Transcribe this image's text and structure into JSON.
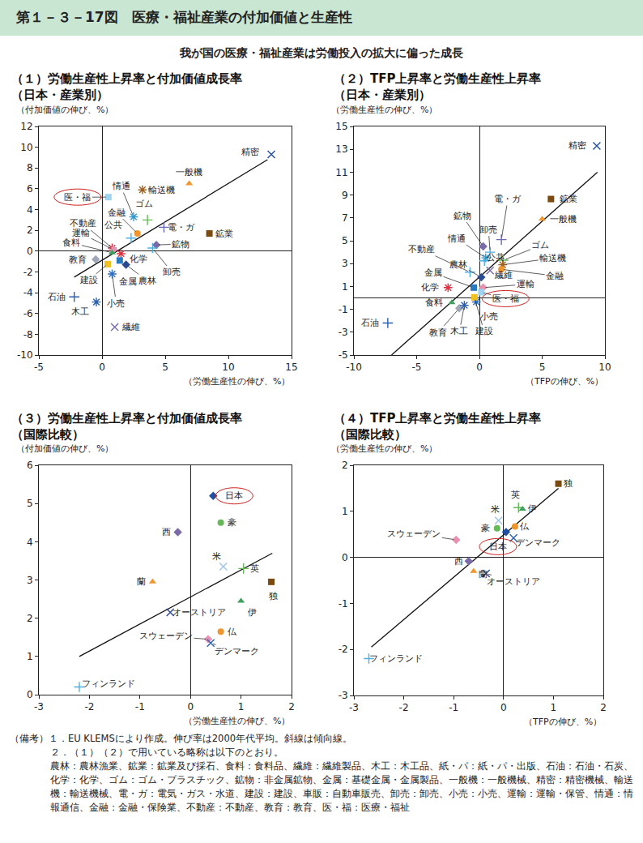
{
  "title": "第１－３－17図　医療・福祉産業の付加価値と生産性",
  "subtitle": "我が国の医療・福祉産業は労働投入の拡大に偏った成長",
  "notes": [
    "（備考）１．EU KLEMSにより作成。伸び率は2000年代平均。斜線は傾向線。",
    "２．（１）（２）で用いている略称は以下のとおり。",
    "農林：農林漁業、鉱業：鉱業及び採石、食料：食料品、繊維：繊維製品、木工：木工品、紙・パ：紙・パ・出版、石油：石油・石炭、化学：化学、ゴム：ゴム・プラスチック、鉱物：非金属鉱物、金属：基礎金属・金属製品、一般機：一般機械、精密：精密機械、輸送機：輸送機械、電・ガ：電気・ガス・水道、建設：建設、車販：自動車販売、卸売：卸売、小売：小売、運輸：運輸・保管、情通：情報通信、金融：金融・保険業、不動産：不動産、教育：教育、医・福：医療・福祉"
  ],
  "chart_data": [
    {
      "type": "scatter",
      "title": [
        "（１）労働生産性上昇率と付加価値成長率",
        "（日本・産業別）"
      ],
      "x_label": "（労働生産性の伸び、%）",
      "y_label": "（付加価値の伸び、%）",
      "xlim": [
        -5,
        15
      ],
      "xticks": [
        -5,
        0,
        5,
        10,
        15
      ],
      "ylim": [
        -10,
        12
      ],
      "yticks": [
        -10,
        -8,
        -6,
        -4,
        -2,
        0,
        2,
        4,
        6,
        8,
        10,
        12
      ],
      "trend_line": {
        "x": [
          -2.2,
          13.1
        ],
        "values": [
          -2.5,
          8.8
        ]
      },
      "series": [
        {
          "name": "精密",
          "color": "#1f4fa0",
          "marker": "x",
          "x": [
            13.4
          ],
          "values": [
            9.3
          ]
        },
        {
          "name": "一般機",
          "color": "#f0962e",
          "marker": "triangle",
          "x": [
            6.9
          ],
          "values": [
            6.5
          ]
        },
        {
          "name": "輸送機",
          "color": "#a0601e",
          "marker": "asterisk",
          "x": [
            3.2
          ],
          "values": [
            5.9
          ]
        },
        {
          "name": "医・福",
          "color": "#9fd4f0",
          "marker": "square",
          "x": [
            0.5
          ],
          "values": [
            5.2
          ],
          "highlight": true
        },
        {
          "name": "情通",
          "color": "#3399cc",
          "marker": "asterisk",
          "x": [
            2.5
          ],
          "values": [
            3.3
          ]
        },
        {
          "name": "ゴム",
          "color": "#66b85a",
          "marker": "plus",
          "x": [
            3.6
          ],
          "values": [
            3.0
          ]
        },
        {
          "name": "金融",
          "color": "#f0962e",
          "marker": "circle",
          "x": [
            2.8
          ],
          "values": [
            1.7
          ]
        },
        {
          "name": "公共",
          "color": "#4db0e0",
          "marker": "plus",
          "x": [
            2.3
          ],
          "values": [
            1.25
          ]
        },
        {
          "name": "電・ガ",
          "color": "#6a6ab8",
          "marker": "plus",
          "x": [
            4.9
          ],
          "values": [
            2.3
          ]
        },
        {
          "name": "鉱業",
          "color": "#7a4a10",
          "marker": "square",
          "x": [
            8.5
          ],
          "values": [
            1.7
          ]
        },
        {
          "name": "鉱物",
          "color": "#7a6aa8",
          "marker": "diamond",
          "x": [
            4.3
          ],
          "values": [
            0.6
          ]
        },
        {
          "name": "卸売",
          "color": "#4db0e0",
          "marker": "plus",
          "x": [
            4.0
          ],
          "values": [
            0.3
          ]
        },
        {
          "name": "不動産",
          "color": "#e03040",
          "marker": "asterisk",
          "x": [
            0.8
          ],
          "values": [
            0.3
          ]
        },
        {
          "name": "運輸",
          "color": "#e890b0",
          "marker": "diamond",
          "x": [
            0.9
          ],
          "values": [
            0.15
          ]
        },
        {
          "name": "食料",
          "color": "#40a060",
          "marker": "triangle",
          "x": [
            0.8
          ],
          "values": [
            -0.15
          ]
        },
        {
          "name": "教育",
          "color": "#a0a8b8",
          "marker": "diamond",
          "x": [
            -0.5
          ],
          "values": [
            -0.8
          ]
        },
        {
          "name": "化学",
          "color": "#e03040",
          "marker": "asterisk",
          "x": [
            1.5
          ],
          "values": [
            -0.25
          ]
        },
        {
          "name": "農林",
          "color": "#2a4a90",
          "marker": "diamond",
          "x": [
            1.9
          ],
          "values": [
            -1.3
          ]
        },
        {
          "name": "金属",
          "color": "#2a7ac0",
          "marker": "square",
          "x": [
            1.4
          ],
          "values": [
            -0.9
          ]
        },
        {
          "name": "建設",
          "color": "#f0c020",
          "marker": "square",
          "x": [
            0.45
          ],
          "values": [
            -1.25
          ]
        },
        {
          "name": "小売",
          "color": "#3070c0",
          "marker": "asterisk",
          "x": [
            0.8
          ],
          "values": [
            -2.2
          ]
        },
        {
          "name": "石油",
          "color": "#2a60b0",
          "marker": "plus",
          "x": [
            -2.2
          ],
          "values": [
            -4.4
          ]
        },
        {
          "name": "木工",
          "color": "#2a60b0",
          "marker": "asterisk",
          "x": [
            -0.45
          ],
          "values": [
            -4.9
          ]
        },
        {
          "name": "繊維",
          "color": "#7a6aa8",
          "marker": "x",
          "x": [
            1.0
          ],
          "values": [
            -7.3
          ]
        }
      ]
    },
    {
      "type": "scatter",
      "title": [
        "（２）TFP上昇率と労働生産性上昇率",
        "（日本・産業別）"
      ],
      "x_label": "（TFPの伸び、%）",
      "y_label": "（労働生産性の伸び、%）",
      "xlim": [
        -10,
        10
      ],
      "xticks": [
        -10,
        -5,
        0,
        5,
        10
      ],
      "ylim": [
        -5,
        15
      ],
      "yticks": [
        -5,
        -3,
        -1,
        1,
        3,
        5,
        7,
        9,
        11,
        13,
        15
      ],
      "trend_line": {
        "x": [
          -7.0,
          9.4
        ],
        "values": [
          -5.0,
          11.0
        ]
      },
      "series": [
        {
          "name": "精密",
          "color": "#1f4fa0",
          "marker": "x",
          "x": [
            9.35
          ],
          "values": [
            13.3
          ]
        },
        {
          "name": "鉱業",
          "color": "#7a4a10",
          "marker": "square",
          "x": [
            5.7
          ],
          "values": [
            8.65
          ]
        },
        {
          "name": "一般機",
          "color": "#f0962e",
          "marker": "triangle",
          "x": [
            5.0
          ],
          "values": [
            6.9
          ]
        },
        {
          "name": "電・ガ",
          "color": "#6a6ab8",
          "marker": "plus",
          "x": [
            1.75
          ],
          "values": [
            5.1
          ]
        },
        {
          "name": "鉱物",
          "color": "#7a6aa8",
          "marker": "diamond",
          "x": [
            0.3
          ],
          "values": [
            4.5
          ]
        },
        {
          "name": "卸売",
          "color": "#4db0e0",
          "marker": "plus",
          "x": [
            0.85
          ],
          "values": [
            4.0
          ]
        },
        {
          "name": "ゴム",
          "color": "#66b85a",
          "marker": "plus",
          "x": [
            1.9
          ],
          "values": [
            3.3
          ]
        },
        {
          "name": "輸送機",
          "color": "#a0601e",
          "marker": "asterisk",
          "x": [
            1.85
          ],
          "values": [
            2.9
          ]
        },
        {
          "name": "金融",
          "color": "#f0962e",
          "marker": "circle",
          "x": [
            1.75
          ],
          "values": [
            2.5
          ]
        },
        {
          "name": "繊維",
          "color": "#7a6aa8",
          "marker": "x",
          "x": [
            0.85
          ],
          "values": [
            2.4
          ]
        },
        {
          "name": "情通",
          "color": "#3399cc",
          "marker": "asterisk",
          "x": [
            0.5
          ],
          "values": [
            3.5
          ]
        },
        {
          "name": "公共",
          "color": "#4db0e0",
          "marker": "plus",
          "x": [
            0.4
          ],
          "values": [
            3.25
          ]
        },
        {
          "name": "農林",
          "color": "#2a4a90",
          "marker": "diamond",
          "x": [
            0.15
          ],
          "values": [
            1.8
          ]
        },
        {
          "name": "不動産",
          "color": "#4db0e0",
          "marker": "plus",
          "x": [
            -0.75
          ],
          "values": [
            2.25
          ]
        },
        {
          "name": "金属",
          "color": "#2a7ac0",
          "marker": "square",
          "x": [
            -0.45
          ],
          "values": [
            0.9
          ]
        },
        {
          "name": "化学",
          "color": "#e03040",
          "marker": "asterisk",
          "x": [
            -2.5
          ],
          "values": [
            0.9
          ]
        },
        {
          "name": "運輸",
          "color": "#e890b0",
          "marker": "diamond",
          "x": [
            0.3
          ],
          "values": [
            0.9
          ]
        },
        {
          "name": "医・福",
          "color": "#9fd4f0",
          "marker": "square",
          "x": [
            0.15
          ],
          "values": [
            0.5
          ],
          "highlight": true
        },
        {
          "name": "食料",
          "color": "#40a060",
          "marker": "triangle",
          "x": [
            -2.2
          ],
          "values": [
            -0.4
          ]
        },
        {
          "name": "教育",
          "color": "#a0a8b8",
          "marker": "diamond",
          "x": [
            -1.6
          ],
          "values": [
            -0.9
          ]
        },
        {
          "name": "木工",
          "color": "#2a60b0",
          "marker": "asterisk",
          "x": [
            -1.2
          ],
          "values": [
            -0.65
          ]
        },
        {
          "name": "小売",
          "color": "#3070c0",
          "marker": "asterisk",
          "x": [
            -0.25
          ],
          "values": [
            -0.35
          ]
        },
        {
          "name": "建設",
          "color": "#f0c020",
          "marker": "square",
          "x": [
            -0.4
          ],
          "values": [
            0.05
          ]
        },
        {
          "name": "石油",
          "color": "#2a60b0",
          "marker": "plus",
          "x": [
            -7.3
          ],
          "values": [
            -2.2
          ]
        }
      ]
    },
    {
      "type": "scatter",
      "title": [
        "（３）労働生産性上昇率と付加価値成長率",
        "（国際比較）"
      ],
      "x_label": "（労働生産性の伸び、%）",
      "y_label": "（付加価値の伸び、%）",
      "xlim": [
        -3,
        2
      ],
      "xticks": [
        -3,
        -2,
        -1,
        0,
        1,
        2
      ],
      "ylim": [
        0,
        6
      ],
      "yticks": [
        0,
        1,
        2,
        3,
        4,
        5,
        6
      ],
      "trend_line": {
        "x": [
          -2.2,
          1.62
        ],
        "values": [
          1.0,
          3.7
        ]
      },
      "series": [
        {
          "name": "日本",
          "color": "#1f4fa0",
          "marker": "diamond",
          "x": [
            0.45
          ],
          "values": [
            5.2
          ],
          "highlight": true
        },
        {
          "name": "豪",
          "color": "#66b85a",
          "marker": "circle",
          "x": [
            0.6
          ],
          "values": [
            4.5
          ]
        },
        {
          "name": "西",
          "color": "#7a6aa8",
          "marker": "diamond",
          "x": [
            -0.25
          ],
          "values": [
            4.25
          ]
        },
        {
          "name": "米",
          "color": "#9fc4e8",
          "marker": "x",
          "x": [
            0.65
          ],
          "values": [
            3.35
          ]
        },
        {
          "name": "英",
          "color": "#66b85a",
          "marker": "plus",
          "x": [
            1.05
          ],
          "values": [
            3.3
          ]
        },
        {
          "name": "蘭",
          "color": "#f0962e",
          "marker": "triangle",
          "x": [
            -0.75
          ],
          "values": [
            2.95
          ]
        },
        {
          "name": "独",
          "color": "#7a4a10",
          "marker": "square",
          "x": [
            1.6
          ],
          "values": [
            2.95
          ]
        },
        {
          "name": "オーストリア",
          "color": "#2a4a90",
          "marker": "x",
          "x": [
            -0.4
          ],
          "values": [
            2.15
          ]
        },
        {
          "name": "伊",
          "color": "#40a060",
          "marker": "triangle",
          "x": [
            1.0
          ],
          "values": [
            2.45
          ]
        },
        {
          "name": "仏",
          "color": "#f0962e",
          "marker": "circle",
          "x": [
            0.6
          ],
          "values": [
            1.65
          ]
        },
        {
          "name": "スウェーデン",
          "color": "#e890b0",
          "marker": "diamond",
          "x": [
            0.35
          ],
          "values": [
            1.45
          ]
        },
        {
          "name": "デンマーク",
          "color": "#2a60b0",
          "marker": "x",
          "x": [
            0.4
          ],
          "values": [
            1.35
          ]
        },
        {
          "name": "フィンランド",
          "color": "#4db0e0",
          "marker": "plus",
          "x": [
            -2.2
          ],
          "values": [
            0.2
          ]
        }
      ]
    },
    {
      "type": "scatter",
      "title": [
        "（４）TFP上昇率と労働生産性上昇率",
        "（国際比較）"
      ],
      "x_label": "（TFPの伸び、%）",
      "y_label": "（労働生産性の伸び、%）",
      "xlim": [
        -3,
        2
      ],
      "xticks": [
        -3,
        -2,
        -1,
        0,
        1,
        2
      ],
      "ylim": [
        -3,
        2
      ],
      "yticks": [
        -3,
        -2,
        -1,
        0,
        1,
        2
      ],
      "trend_line": {
        "x": [
          -2.65,
          1.1
        ],
        "values": [
          -1.95,
          1.5
        ]
      },
      "series": [
        {
          "name": "独",
          "color": "#7a4a10",
          "marker": "square",
          "x": [
            1.1
          ],
          "values": [
            1.6
          ]
        },
        {
          "name": "英",
          "color": "#66b85a",
          "marker": "plus",
          "x": [
            0.3
          ],
          "values": [
            1.08
          ]
        },
        {
          "name": "伊",
          "color": "#40a060",
          "marker": "triangle",
          "x": [
            0.38
          ],
          "values": [
            1.05
          ]
        },
        {
          "name": "米",
          "color": "#9fc4e8",
          "marker": "x",
          "x": [
            -0.1
          ],
          "values": [
            0.8
          ]
        },
        {
          "name": "豪",
          "color": "#66b85a",
          "marker": "circle",
          "x": [
            -0.13
          ],
          "values": [
            0.63
          ]
        },
        {
          "name": "仏",
          "color": "#f0962e",
          "marker": "circle",
          "x": [
            0.23
          ],
          "values": [
            0.67
          ]
        },
        {
          "name": "日本",
          "color": "#1f4fa0",
          "marker": "diamond",
          "x": [
            0.05
          ],
          "values": [
            0.55
          ],
          "highlight": true
        },
        {
          "name": "デンマーク",
          "color": "#2a60b0",
          "marker": "x",
          "x": [
            0.2
          ],
          "values": [
            0.42
          ]
        },
        {
          "name": "スウェーデン",
          "color": "#e890b0",
          "marker": "diamond",
          "x": [
            -0.95
          ],
          "values": [
            0.38
          ]
        },
        {
          "name": "西",
          "color": "#7a6aa8",
          "marker": "diamond",
          "x": [
            -0.7
          ],
          "values": [
            -0.08
          ]
        },
        {
          "name": "蘭",
          "color": "#f0962e",
          "marker": "triangle",
          "x": [
            -0.6
          ],
          "values": [
            -0.3
          ]
        },
        {
          "name": "オーストリア",
          "color": "#2a4a90",
          "marker": "x",
          "x": [
            -0.35
          ],
          "values": [
            -0.35
          ]
        },
        {
          "name": "フィンランド",
          "color": "#4db0e0",
          "marker": "plus",
          "x": [
            -2.7
          ],
          "values": [
            -2.2
          ]
        }
      ]
    }
  ]
}
